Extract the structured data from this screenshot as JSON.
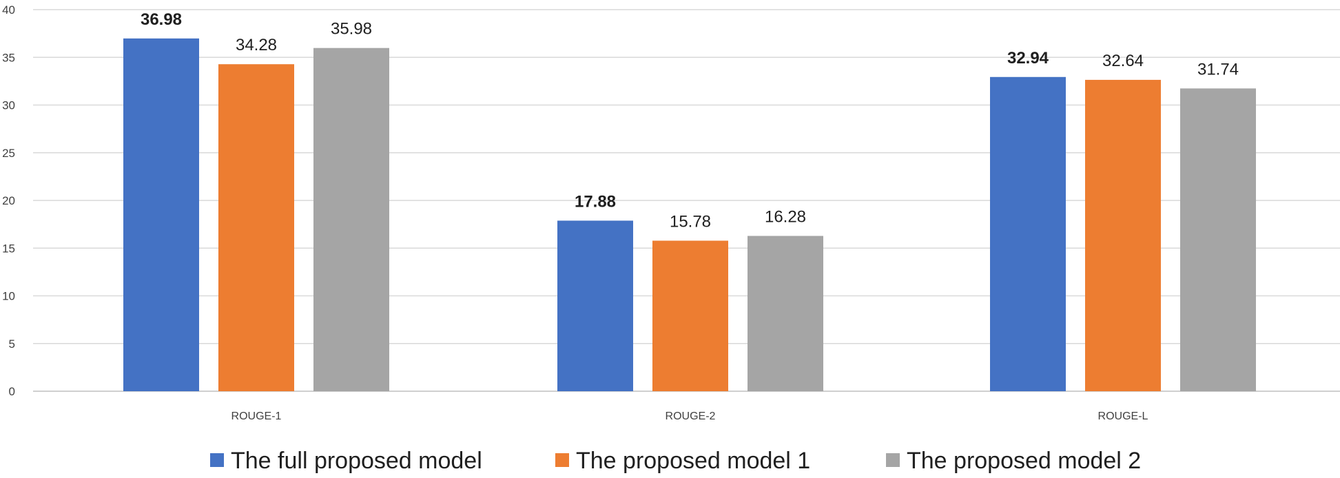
{
  "chart_data": {
    "type": "bar",
    "categories": [
      "ROUGE-1",
      "ROUGE-2",
      "ROUGE-L"
    ],
    "series": [
      {
        "name": "The full proposed model",
        "values": [
          36.98,
          17.88,
          32.94
        ],
        "color": "#4472C4",
        "labels_bold": true
      },
      {
        "name": "The proposed model 1",
        "values": [
          34.28,
          15.78,
          32.64
        ],
        "color": "#ED7D31",
        "labels_bold": false
      },
      {
        "name": "The proposed model 2",
        "values": [
          35.98,
          16.28,
          31.74
        ],
        "color": "#A5A5A5",
        "labels_bold": false
      }
    ],
    "value_labels": [
      [
        "36.98",
        "17.88",
        "32.94"
      ],
      [
        "34.28",
        "15.78",
        "32.64"
      ],
      [
        "35.98",
        "16.28",
        "31.74"
      ]
    ],
    "y_ticks": [
      "0",
      "5",
      "10",
      "15",
      "20",
      "25",
      "30",
      "35",
      "40"
    ],
    "ylim": [
      0,
      40
    ],
    "grid": true,
    "legend_position": "bottom"
  }
}
